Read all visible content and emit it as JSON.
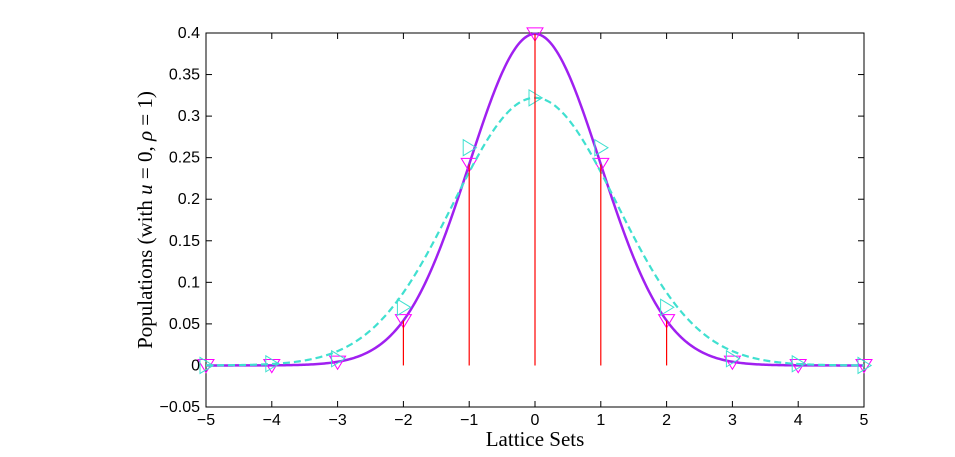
{
  "chart_data": {
    "type": "line",
    "title": "",
    "xlabel": "Lattice Sets",
    "ylabel": {
      "prefix": "Populations (with ",
      "var_u": "u",
      "eq_u": " = 0, ",
      "var_rho": "ρ",
      "eq_rho": " = 1)"
    },
    "xlim": [
      -5,
      5
    ],
    "ylim": [
      -0.05,
      0.4
    ],
    "xticks": [
      "−5",
      "−4",
      "−3",
      "−2",
      "−1",
      "0",
      "1",
      "2",
      "3",
      "4",
      "5"
    ],
    "yticks": [
      "−0.05",
      "0",
      "0.05",
      "0.1",
      "0.15",
      "0.2",
      "0.25",
      "0.3",
      "0.35",
      "0.4"
    ],
    "grid": false,
    "legend": "none",
    "series": [
      {
        "style": "solid",
        "color": "#a020f0",
        "curve": {
          "kind": "gaussian",
          "sigma": 1.0,
          "peak": 0.399
        },
        "markers": {
          "shape": "triangle-down",
          "color": "#ff00ff",
          "x": [
            -5,
            -4,
            -3,
            -2,
            -1,
            0,
            1,
            2,
            3,
            4,
            5
          ],
          "y": [
            0.0,
            0.0,
            0.004,
            0.054,
            0.242,
            0.399,
            0.242,
            0.054,
            0.004,
            0.0,
            0.0
          ]
        }
      },
      {
        "style": "dashed",
        "color": "#40e0d0",
        "curve": {
          "kind": "gaussian",
          "sigma": 1.24,
          "peak": 0.322
        },
        "markers": {
          "shape": "triangle-right",
          "color": "#40e0d0",
          "x": [
            -5,
            -4,
            -3,
            -2,
            -1,
            0,
            1,
            2,
            3,
            4,
            5
          ],
          "y": [
            0.0,
            0.002,
            0.008,
            0.07,
            0.262,
            0.322,
            0.262,
            0.07,
            0.008,
            0.002,
            0.0
          ]
        }
      },
      {
        "style": "stem",
        "color": "#ff0000",
        "x": [
          -2,
          -1,
          0,
          1,
          2
        ],
        "y": [
          0.054,
          0.242,
          0.399,
          0.242,
          0.054
        ]
      }
    ]
  }
}
